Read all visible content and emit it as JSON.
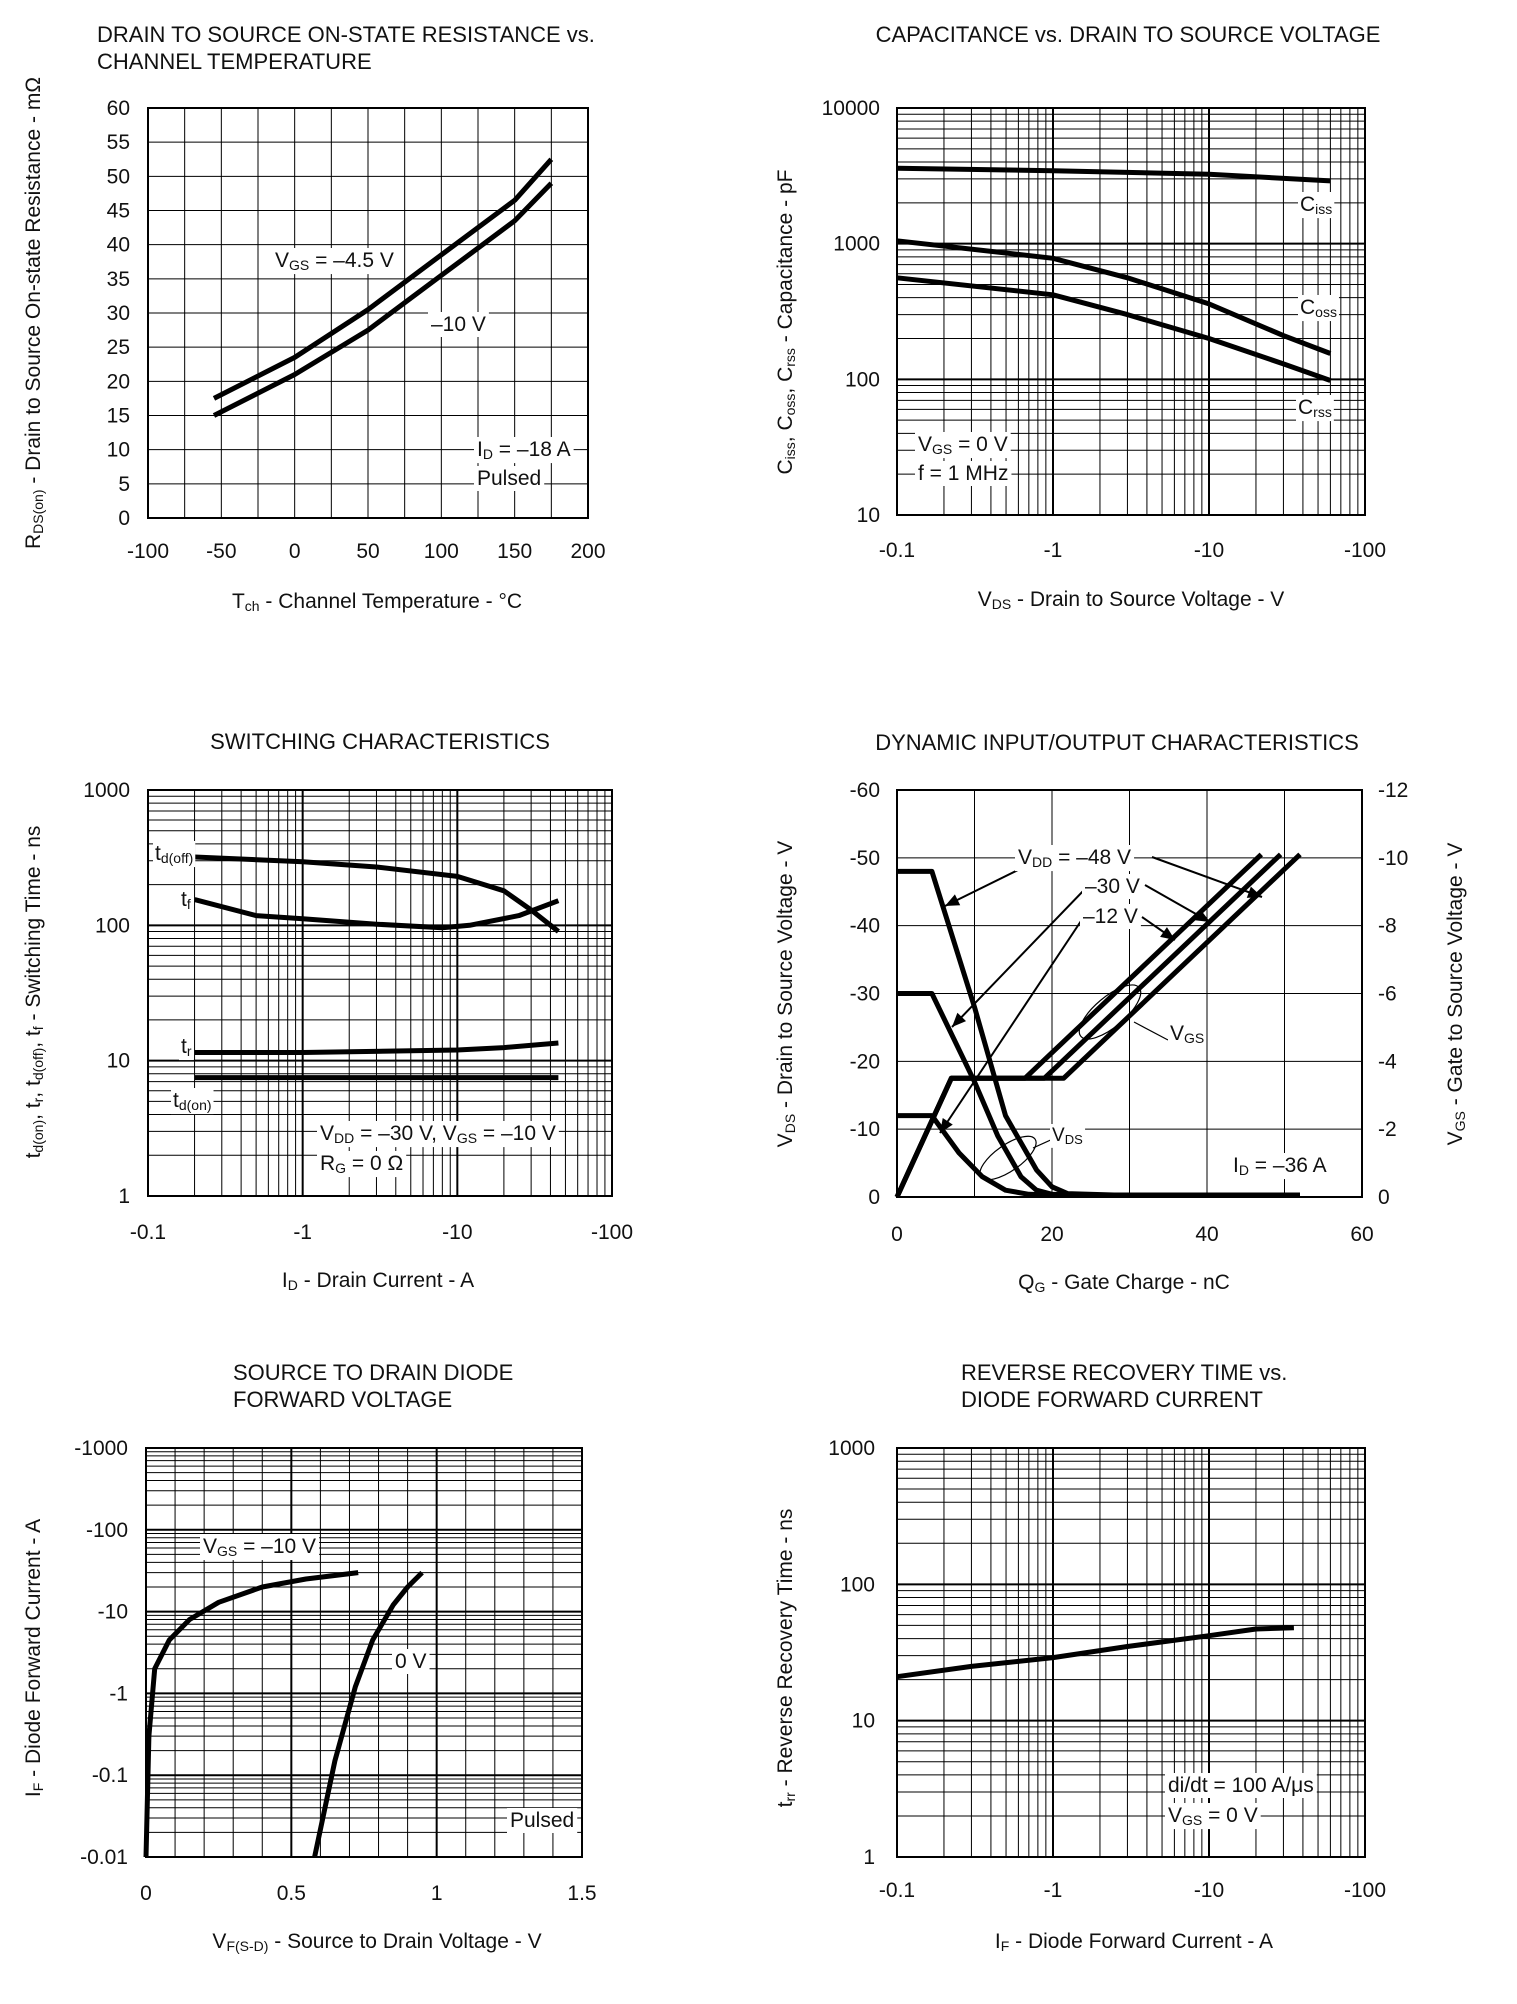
{
  "chart_data": [
    {
      "id": "rds",
      "type": "line",
      "title": [
        "DRAIN TO SOURCE ON-STATE RESISTANCE vs.",
        "CHANNEL TEMPERATURE"
      ],
      "xlabel": "Tch - Channel Temperature - °C",
      "ylabel": "RDS(on) - Drain to Source On-state Resistance - mΩ",
      "xlim": [
        -100,
        200
      ],
      "ylim": [
        0,
        60
      ],
      "xticks": [
        -100,
        -50,
        0,
        50,
        100,
        150,
        200
      ],
      "yticks": [
        0,
        5,
        10,
        15,
        20,
        25,
        30,
        35,
        40,
        45,
        50,
        55,
        60
      ],
      "series": [
        {
          "name": "VGS = -4.5 V",
          "x": [
            -55,
            0,
            50,
            100,
            150,
            175
          ],
          "y": [
            17.5,
            23.5,
            30.5,
            38.5,
            46.5,
            52.5
          ]
        },
        {
          "name": "-10 V",
          "x": [
            -55,
            0,
            50,
            100,
            150,
            175
          ],
          "y": [
            15,
            21,
            27.5,
            35.5,
            43.5,
            49
          ]
        }
      ],
      "annotations": [
        "VGS = -4.5 V",
        "-10 V",
        "ID = -18 A",
        "Pulsed"
      ]
    },
    {
      "id": "cap",
      "type": "line",
      "title": [
        "CAPACITANCE vs. DRAIN TO SOURCE VOLTAGE"
      ],
      "xlabel": "VDS - Drain to Source Voltage - V",
      "ylabel": "Ciss, Coss, Crss - Capacitance - pF",
      "xscale": "log",
      "yscale": "log",
      "xlim": [
        0.1,
        100
      ],
      "ylim": [
        10,
        10000
      ],
      "xtick_labels": [
        "-0.1",
        "-1",
        "-10",
        "-100"
      ],
      "ytick_labels": [
        "10",
        "100",
        "1000",
        "10000"
      ],
      "series": [
        {
          "name": "Ciss",
          "x": [
            0.1,
            1,
            10,
            60
          ],
          "y": [
            3600,
            3450,
            3250,
            2900
          ]
        },
        {
          "name": "Coss",
          "x": [
            0.1,
            1,
            3,
            10,
            30,
            60
          ],
          "y": [
            1050,
            780,
            560,
            360,
            210,
            155
          ]
        },
        {
          "name": "Crss",
          "x": [
            0.1,
            1,
            3,
            10,
            30,
            60
          ],
          "y": [
            560,
            420,
            300,
            200,
            130,
            98
          ]
        }
      ],
      "annotations": [
        "VGS = 0 V",
        "f = 1 MHz",
        "Ciss",
        "Coss",
        "Crss"
      ]
    },
    {
      "id": "sw",
      "type": "line",
      "title": [
        "SWITCHING CHARACTERISTICS"
      ],
      "xlabel": "ID - Drain Current - A",
      "ylabel": "td(on), tr, td(off), tf - Switching Time - ns",
      "xscale": "log",
      "yscale": "log",
      "xlim": [
        0.1,
        100
      ],
      "ylim": [
        1,
        1000
      ],
      "xtick_labels": [
        "-0.1",
        "-1",
        "-10",
        "-100"
      ],
      "ytick_labels": [
        "1",
        "10",
        "100",
        "1000"
      ],
      "series": [
        {
          "name": "td(off)",
          "x": [
            0.2,
            1,
            3,
            10,
            20,
            30,
            45
          ],
          "y": [
            320,
            295,
            270,
            230,
            180,
            130,
            90
          ]
        },
        {
          "name": "tf",
          "x": [
            0.2,
            0.5,
            1,
            3,
            8,
            12,
            25,
            45
          ],
          "y": [
            155,
            118,
            112,
            102,
            96,
            100,
            118,
            152
          ]
        },
        {
          "name": "tr",
          "x": [
            0.2,
            1,
            10,
            20,
            45
          ],
          "y": [
            11.5,
            11.5,
            12,
            12.5,
            13.5
          ]
        },
        {
          "name": "td(on)",
          "x": [
            0.2,
            1,
            10,
            45
          ],
          "y": [
            7.5,
            7.5,
            7.5,
            7.5
          ]
        }
      ],
      "annotations": [
        "VDD = -30 V, VGS = -10 V",
        "RG = 0 Ω",
        "td(off)",
        "tf",
        "tr",
        "td(on)"
      ]
    },
    {
      "id": "dyn",
      "type": "line",
      "title": [
        "DYNAMIC INPUT/OUTPUT CHARACTERISTICS"
      ],
      "xlabel": "QG - Gate Charge - nC",
      "ylabel": "VDS - Drain to Source Voltage - V",
      "y2label": "VGS - Gate to Source Voltage - V",
      "xlim": [
        0,
        60
      ],
      "ylim": [
        0,
        -60
      ],
      "y2lim": [
        0,
        -12
      ],
      "xticks": [
        "0",
        "20",
        "40",
        "60"
      ],
      "yticks": [
        "0",
        "-10",
        "-20",
        "-30",
        "-40",
        "-50",
        "-60"
      ],
      "y2ticks": [
        "0",
        "-2",
        "-4",
        "-6",
        "-8",
        "-10",
        "-12"
      ],
      "series": [
        {
          "name": "VDS (VDD = -48 V)",
          "x": [
            0,
            4.5,
            10,
            14,
            18,
            20,
            22,
            28,
            52
          ],
          "y": [
            -48,
            -48,
            -28,
            -12,
            -4,
            -1.5,
            -0.5,
            -0.3,
            -0.3
          ]
        },
        {
          "name": "VDS (VDD = -30 V)",
          "x": [
            0,
            4.5,
            10,
            13,
            16,
            18,
            20,
            22
          ],
          "y": [
            -30,
            -30,
            -17,
            -9,
            -3,
            -1,
            -0.4,
            -0.3
          ]
        },
        {
          "name": "VDS (VDD = -12 V)",
          "x": [
            0,
            4.5,
            8,
            11,
            14,
            17,
            20
          ],
          "y": [
            -12,
            -12,
            -6.5,
            -3,
            -1,
            -0.4,
            -0.3
          ]
        },
        {
          "name": "VGS (VDD = -12 V)",
          "x": [
            0,
            7,
            16.5,
            47
          ],
          "y2": [
            0,
            -3.5,
            -3.5,
            -10.1
          ]
        },
        {
          "name": "VGS (VDD = -30 V)",
          "x": [
            0,
            7,
            19,
            49.5
          ],
          "y2": [
            0,
            -3.5,
            -3.5,
            -10.1
          ]
        },
        {
          "name": "VGS (VDD = -48 V)",
          "x": [
            0,
            7,
            21.5,
            52
          ],
          "y2": [
            0,
            -3.5,
            -3.5,
            -10.1
          ]
        }
      ],
      "annotations": [
        "VDD = -48 V",
        "-30 V",
        "-12 V",
        "VGS",
        "VDS",
        "ID = -36 A"
      ]
    },
    {
      "id": "diode",
      "type": "line",
      "title": [
        "SOURCE TO DRAIN DIODE",
        "FORWARD VOLTAGE"
      ],
      "xlabel": "VF(S-D) - Source to Drain Voltage - V",
      "ylabel": "IF - Diode Forward Current - A",
      "yscale": "log",
      "xlim": [
        0,
        1.5
      ],
      "ylim": [
        0.01,
        1000
      ],
      "xticks": [
        "0",
        "0.5",
        "1",
        "1.5"
      ],
      "ytick_labels": [
        "-0.01",
        "-0.1",
        "-1",
        "-10",
        "-100",
        "-1000"
      ],
      "series": [
        {
          "name": "VGS = -10 V",
          "x": [
            0,
            0.01,
            0.03,
            0.08,
            0.15,
            0.25,
            0.4,
            0.55,
            0.73
          ],
          "y": [
            0.01,
            0.3,
            2,
            4.5,
            8,
            13,
            20,
            25,
            30
          ]
        },
        {
          "name": "0 V",
          "x": [
            0.58,
            0.65,
            0.72,
            0.78,
            0.85,
            0.9,
            0.95
          ],
          "y": [
            0.01,
            0.15,
            1.2,
            4.5,
            12,
            20,
            30
          ]
        }
      ],
      "annotations": [
        "VGS = -10 V",
        "0 V",
        "Pulsed"
      ]
    },
    {
      "id": "trr",
      "type": "line",
      "title": [
        "REVERSE RECOVERY TIME vs.",
        "DIODE FORWARD CURRENT"
      ],
      "xlabel": "IF - Diode Forward Current - A",
      "ylabel": "trr - Reverse Recovery Time - ns",
      "xscale": "log",
      "yscale": "log",
      "xlim": [
        0.1,
        100
      ],
      "ylim": [
        1,
        1000
      ],
      "xtick_labels": [
        "-0.1",
        "-1",
        "-10",
        "-100"
      ],
      "ytick_labels": [
        "1",
        "10",
        "100",
        "1000"
      ],
      "series": [
        {
          "name": "trr",
          "x": [
            0.1,
            0.3,
            1,
            3,
            10,
            20,
            35
          ],
          "y": [
            21,
            25,
            29,
            35,
            42,
            47,
            48
          ]
        }
      ],
      "annotations": [
        "di/dt = 100 A/μs",
        "VGS = 0 V"
      ]
    }
  ]
}
